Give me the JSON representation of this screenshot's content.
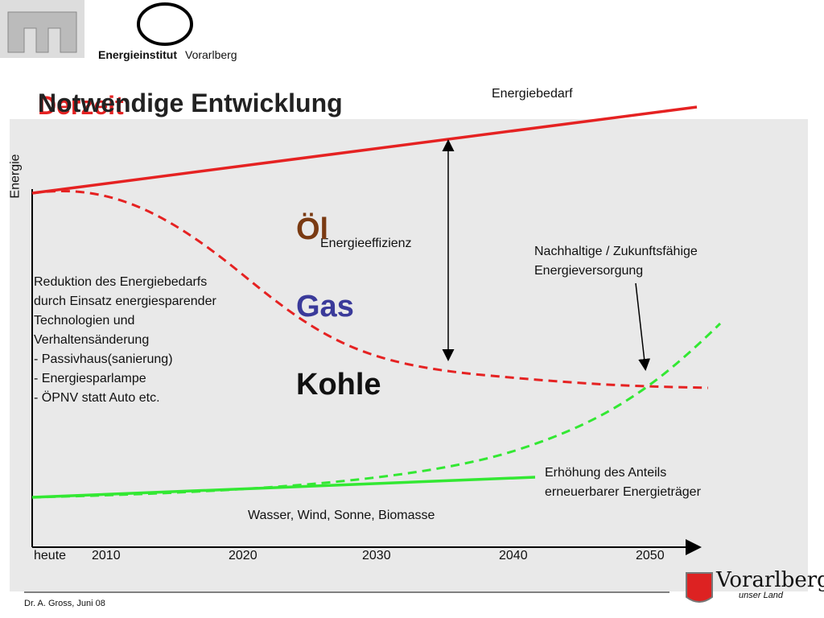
{
  "header": {
    "institute": "Energieinstitut",
    "institute_suffix": "Vorarlberg",
    "title_previous": "Derzeit",
    "title": "Notwendige Entwicklung"
  },
  "diagram": {
    "y_axis_label": "Energie",
    "x_labels": [
      "heute",
      "2010",
      "2020",
      "2030",
      "2040",
      "2050"
    ],
    "demand_label": "Energiebedarf",
    "efficiency_label": "Energieeffizienz",
    "fuels": [
      "Öl",
      "Gas",
      "Kohle"
    ],
    "reduction_note": [
      "Reduktion des Energiebedarfs",
      "durch Einsatz energiesparender",
      "Technologien und",
      "Verhaltensänderung",
      "- Passivhaus(sanierung)",
      "- Energiesparlampe",
      "- ÖPNV statt Auto etc."
    ],
    "sustainable_note": [
      "Nachhaltige / Zukunftsfähige",
      "Energieversorgung"
    ],
    "renewable_note": [
      "Erhöhung des Anteils",
      "erneuerbarer Energieträger"
    ],
    "renewable_sources": "Wasser, Wind, Sonne, Biomasse"
  },
  "footer": {
    "author": "Dr. A. Gross, Juni 08",
    "brand": "Vorarlberg",
    "brand_sub": "unser Land"
  }
}
